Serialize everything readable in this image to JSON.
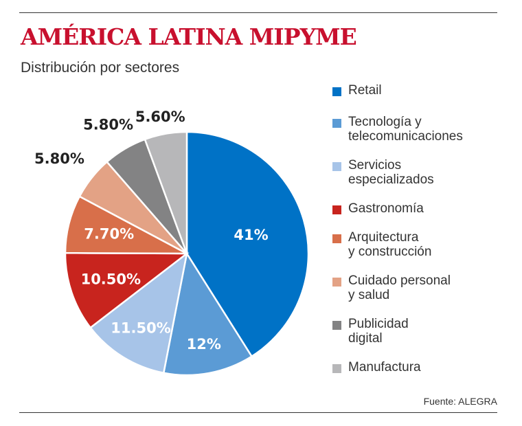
{
  "header": {
    "title": "AMÉRICA LATINA MIPYME",
    "subtitle": "Distribución por sectores"
  },
  "source": "Fuente: ALEGRA",
  "chart_data": {
    "type": "pie",
    "title": "AMÉRICA LATINA MIPYME",
    "subtitle": "Distribución por sectores",
    "legend_position": "right",
    "categories": [
      "Retail",
      "Tecnología y\ntelecomunicaciones",
      "Servicios\nespecializados",
      "Gastronomía",
      "Arquitectura\ny construcción",
      "Cuidado personal\ny salud",
      "Publicidad\ndigital",
      "Manufactura"
    ],
    "values": [
      41,
      12,
      11.5,
      10.5,
      7.7,
      5.8,
      5.8,
      5.6
    ],
    "data_labels": [
      "41%",
      "12%",
      "11.50%",
      "10.50%",
      "7.70%",
      "5.80%",
      "5.80%",
      "5.60%"
    ],
    "colors": [
      "#0072c6",
      "#5b9bd5",
      "#a7c4e8",
      "#c8241e",
      "#d86f4a",
      "#e3a285",
      "#838384",
      "#b7b7b9"
    ]
  }
}
